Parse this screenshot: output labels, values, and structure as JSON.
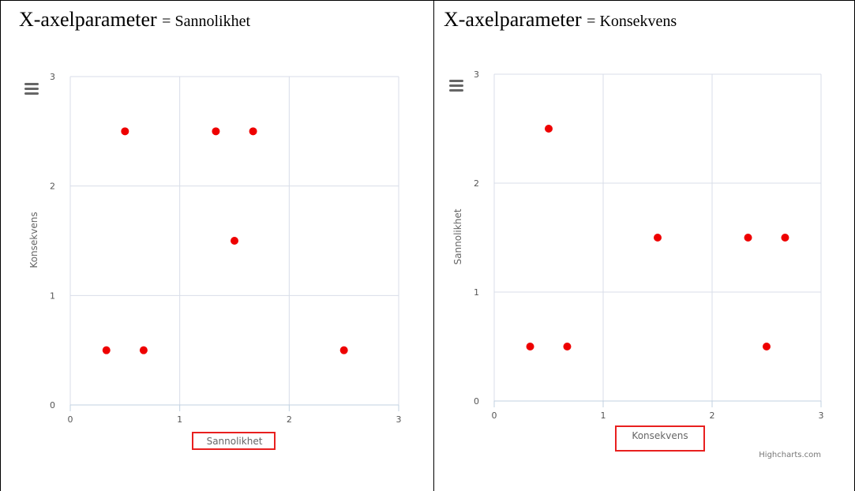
{
  "left_panel": {
    "title_param": "X-axelparameter",
    "title_eq": "= ",
    "title_value": "Sannolikhet"
  },
  "right_panel": {
    "title_param": "X-axelparameter",
    "title_eq": "= ",
    "title_value": "Konsekvens",
    "credits": "Highcharts.com"
  },
  "marker_color": "#ee0000",
  "highlight_color": "#e8201f",
  "chart_data": [
    {
      "type": "scatter",
      "xlabel": "Sannolikhet",
      "ylabel": "Konsekvens",
      "xlim": [
        0,
        3
      ],
      "ylim": [
        0,
        3
      ],
      "x_ticks": [
        "0",
        "1",
        "2",
        "3"
      ],
      "y_ticks": [
        "0",
        "1",
        "2",
        "3"
      ],
      "grid": true,
      "points": [
        {
          "x": 0.5,
          "y": 2.5
        },
        {
          "x": 1.33,
          "y": 2.5
        },
        {
          "x": 1.67,
          "y": 2.5
        },
        {
          "x": 1.5,
          "y": 1.5
        },
        {
          "x": 0.33,
          "y": 0.5
        },
        {
          "x": 0.67,
          "y": 0.5
        },
        {
          "x": 2.5,
          "y": 0.5
        }
      ]
    },
    {
      "type": "scatter",
      "xlabel": "Konsekvens",
      "ylabel": "Sannolikhet",
      "xlim": [
        0,
        3
      ],
      "ylim": [
        0,
        3
      ],
      "x_ticks": [
        "0",
        "1",
        "2",
        "3"
      ],
      "y_ticks": [
        "0",
        "1",
        "2",
        "3"
      ],
      "grid": true,
      "points": [
        {
          "x": 0.5,
          "y": 2.5
        },
        {
          "x": 1.5,
          "y": 1.5
        },
        {
          "x": 2.33,
          "y": 1.5
        },
        {
          "x": 2.67,
          "y": 1.5
        },
        {
          "x": 0.33,
          "y": 0.5
        },
        {
          "x": 0.67,
          "y": 0.5
        },
        {
          "x": 2.5,
          "y": 0.5
        }
      ]
    }
  ]
}
